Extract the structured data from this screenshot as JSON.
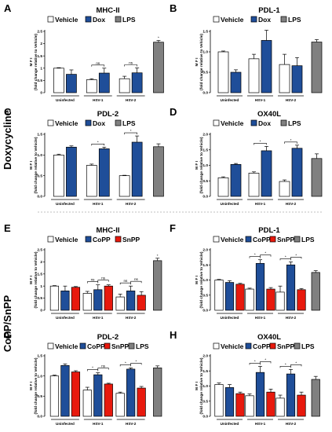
{
  "row_labels": [
    "Doxycycline",
    "CoPP/SnPP"
  ],
  "colors": {
    "vehicle": "#ffffff",
    "treat": "#1f4e99",
    "snpp": "#e8190d",
    "lps": "#808080"
  },
  "chart_data": [
    {
      "letter": "A",
      "type": "bar",
      "title": "MHC-II",
      "legend": [
        "Vehicle",
        "Dox",
        "LPS"
      ],
      "ylabel": "(fold change relative to Vehicle)",
      "ymeasure": "M F I",
      "ylim": [
        0,
        2.5
      ],
      "yticks": [
        "0",
        "0.5",
        "1",
        "1.5",
        "2",
        "2.5"
      ],
      "groups": [
        "Uninfected",
        "HSV-1",
        "HSV-2"
      ],
      "bar_keys": [
        "vehicle",
        "treat"
      ],
      "values": [
        [
          1.0,
          0.75
        ],
        [
          0.53,
          0.8
        ],
        [
          0.57,
          0.81
        ]
      ],
      "errors": [
        [
          0.02,
          0.18
        ],
        [
          0.04,
          0.2
        ],
        [
          0.1,
          0.2
        ]
      ],
      "lps": {
        "value": 2.06,
        "error": 0.07,
        "mark": "*"
      },
      "sig": [
        {
          "g": 1,
          "label": "ns"
        },
        {
          "g": 2,
          "label": "ns"
        }
      ]
    },
    {
      "letter": "B",
      "type": "bar",
      "title": "PDL-1",
      "legend": [
        "Vehicle",
        "Dox",
        "LPS"
      ],
      "ylabel": "(fold change relative to Vehicle)",
      "ymeasure": "M F I",
      "ylim": [
        0,
        1.5
      ],
      "yticks": [
        "0.0",
        "0.5",
        "1.0",
        "1.5"
      ],
      "groups": [
        "Uninfected",
        "HSV-1",
        "HSV-2"
      ],
      "bar_keys": [
        "vehicle",
        "treat"
      ],
      "values": [
        [
          1.0,
          0.5
        ],
        [
          0.83,
          1.28
        ],
        [
          0.69,
          0.66
        ]
      ],
      "errors": [
        [
          0.02,
          0.06
        ],
        [
          0.11,
          0.25
        ],
        [
          0.25,
          0.2
        ]
      ],
      "lps": {
        "value": 1.24,
        "error": 0.06,
        "mark": ""
      },
      "sig": []
    },
    {
      "letter": "C",
      "type": "bar",
      "title": "PDL-2",
      "legend": [
        "Vehicle",
        "Dox",
        "LPS"
      ],
      "ylabel": "(fold change relative to Vehicle)",
      "ymeasure": "M F I",
      "ylim": [
        0,
        1.5
      ],
      "yticks": [
        "0.0",
        "0.5",
        "1.0",
        "1.5"
      ],
      "groups": [
        "Uninfected",
        "HSV-1",
        "HSV-2"
      ],
      "bar_keys": [
        "vehicle",
        "treat"
      ],
      "values": [
        [
          1.0,
          1.19
        ],
        [
          0.75,
          1.15
        ],
        [
          0.5,
          1.31
        ]
      ],
      "errors": [
        [
          0.02,
          0.03
        ],
        [
          0.03,
          0.04
        ],
        [
          0.01,
          0.15
        ]
      ],
      "lps": {
        "value": 1.2,
        "error": 0.07,
        "mark": ""
      },
      "sig": [
        {
          "g": 1,
          "label": "*"
        },
        {
          "g": 2,
          "label": "*"
        }
      ]
    },
    {
      "letter": "D",
      "type": "bar",
      "title": "OX40L",
      "legend": [
        "Vehicle",
        "Dox",
        "LPS"
      ],
      "ylabel": "(fold change relative to Vehicle)",
      "ymeasure": "M F I",
      "ylim": [
        0,
        2.0
      ],
      "yticks": [
        "0.0",
        "0.5",
        "1.0",
        "1.5",
        "2.0"
      ],
      "groups": [
        "Uninfected",
        "HSV-1",
        "HSV-2"
      ],
      "bar_keys": [
        "vehicle",
        "treat"
      ],
      "values": [
        [
          0.6,
          1.03
        ],
        [
          0.75,
          1.47
        ],
        [
          0.48,
          1.55
        ]
      ],
      "errors": [
        [
          0.03,
          0.03
        ],
        [
          0.04,
          0.14
        ],
        [
          0.05,
          0.1
        ]
      ],
      "lps": {
        "value": 1.22,
        "error": 0.15,
        "mark": ""
      },
      "sig": [
        {
          "g": 1,
          "label": "*"
        },
        {
          "g": 2,
          "label": "*"
        }
      ]
    },
    {
      "letter": "E",
      "type": "bar",
      "title": "MHC-II",
      "legend": [
        "Vehicle",
        "CoPP",
        "SnPP"
      ],
      "ylabel": "(fold change relative to Vehicle)",
      "ymeasure": "M F I",
      "ylim": [
        0,
        2.5
      ],
      "yticks": [
        "0",
        "0.5",
        "1",
        "1.5",
        "2",
        "2.5"
      ],
      "groups": [
        "Uninfected",
        "HSV-1",
        "HSV-2"
      ],
      "bar_keys": [
        "vehicle",
        "treat",
        "snpp"
      ],
      "values": [
        [
          1.0,
          0.8,
          0.95
        ],
        [
          0.7,
          0.85,
          1.0
        ],
        [
          0.55,
          0.8,
          0.62
        ]
      ],
      "errors": [
        [
          0.02,
          0.2,
          0.03
        ],
        [
          0.08,
          0.2,
          0.05
        ],
        [
          0.12,
          0.2,
          0.15
        ]
      ],
      "lps": {
        "value": 2.05,
        "error": 0.1,
        "mark": "*"
      },
      "sig": [
        {
          "g": 1,
          "label": "ns"
        },
        {
          "g": 1,
          "label": "ns",
          "right": true
        },
        {
          "g": 2,
          "label": "ns"
        },
        {
          "g": 2,
          "label": "ns",
          "right": true
        }
      ]
    },
    {
      "letter": "F",
      "type": "bar",
      "title": "PDL-1",
      "legend": [
        "Vehicle",
        "CoPP",
        "SnPP",
        "LPS"
      ],
      "ylabel": "(fold change relative to Vehicle)",
      "ymeasure": "M F I",
      "ylim": [
        0,
        2.0
      ],
      "yticks": [
        "0.0",
        "0.5",
        "1.0",
        "1.5",
        "2.0"
      ],
      "groups": [
        "Uninfected",
        "HSV-1",
        "HSV-2"
      ],
      "bar_keys": [
        "vehicle",
        "treat",
        "snpp"
      ],
      "values": [
        [
          1.0,
          0.92,
          0.86
        ],
        [
          0.7,
          1.55,
          0.7
        ],
        [
          0.6,
          1.5,
          0.68
        ]
      ],
      "errors": [
        [
          0.02,
          0.06,
          0.03
        ],
        [
          0.03,
          0.12,
          0.05
        ],
        [
          0.2,
          0.1,
          0.04
        ]
      ],
      "lps": {
        "value": 1.25,
        "error": 0.06,
        "mark": ""
      },
      "sig": [
        {
          "g": 1,
          "label": "*"
        },
        {
          "g": 1,
          "label": "*",
          "right": true
        },
        {
          "g": 2,
          "label": "*"
        },
        {
          "g": 2,
          "label": "*",
          "right": true
        }
      ]
    },
    {
      "letter": "G",
      "type": "bar",
      "title": "PDL-2",
      "legend": [
        "Vehicle",
        "CoPP",
        "SnPP",
        "LPS"
      ],
      "ylabel": "(fold change relative to Vehicle)",
      "ymeasure": "M F I",
      "ylim": [
        0,
        1.5
      ],
      "yticks": [
        "0.0",
        "0.5",
        "1.0",
        "1.5"
      ],
      "groups": [
        "Uninfected",
        "HSV-1",
        "HSV-2"
      ],
      "bar_keys": [
        "vehicle",
        "treat",
        "snpp"
      ],
      "values": [
        [
          1.0,
          1.26,
          1.1
        ],
        [
          0.65,
          1.03,
          0.8
        ],
        [
          0.57,
          1.17,
          0.7
        ]
      ],
      "errors": [
        [
          0.02,
          0.04,
          0.03
        ],
        [
          0.07,
          0.05,
          0.02
        ],
        [
          0.03,
          0.03,
          0.04
        ]
      ],
      "lps": {
        "value": 1.2,
        "error": 0.05,
        "mark": ""
      },
      "sig": [
        {
          "g": 1,
          "label": "*"
        },
        {
          "g": 1,
          "label": "ns",
          "right": true
        },
        {
          "g": 2,
          "label": "*"
        },
        {
          "g": 2,
          "label": "*",
          "right": true
        }
      ]
    },
    {
      "letter": "H",
      "type": "bar",
      "title": "OX40L",
      "legend": [
        "Vehicle",
        "CoPP",
        "SnPP",
        "LPS"
      ],
      "ylabel": "(fold change relative to Vehicle)",
      "ymeasure": "M F I",
      "ylim": [
        0,
        2.0
      ],
      "yticks": [
        "0.0",
        "0.5",
        "1.0",
        "1.5",
        "2.0"
      ],
      "groups": [
        "Uninfected",
        "HSV-1",
        "HSV-2"
      ],
      "bar_keys": [
        "vehicle",
        "treat",
        "snpp"
      ],
      "values": [
        [
          1.05,
          0.95,
          0.75
        ],
        [
          0.68,
          1.45,
          0.8
        ],
        [
          0.6,
          1.4,
          0.7
        ]
      ],
      "errors": [
        [
          0.05,
          0.1,
          0.05
        ],
        [
          0.06,
          0.2,
          0.1
        ],
        [
          0.1,
          0.15,
          0.1
        ]
      ],
      "lps": {
        "value": 1.22,
        "error": 0.1,
        "mark": ""
      },
      "sig": [
        {
          "g": 1,
          "label": "*"
        },
        {
          "g": 1,
          "label": "*",
          "right": true
        },
        {
          "g": 2,
          "label": "*"
        },
        {
          "g": 2,
          "label": "*",
          "right": true
        }
      ]
    }
  ]
}
